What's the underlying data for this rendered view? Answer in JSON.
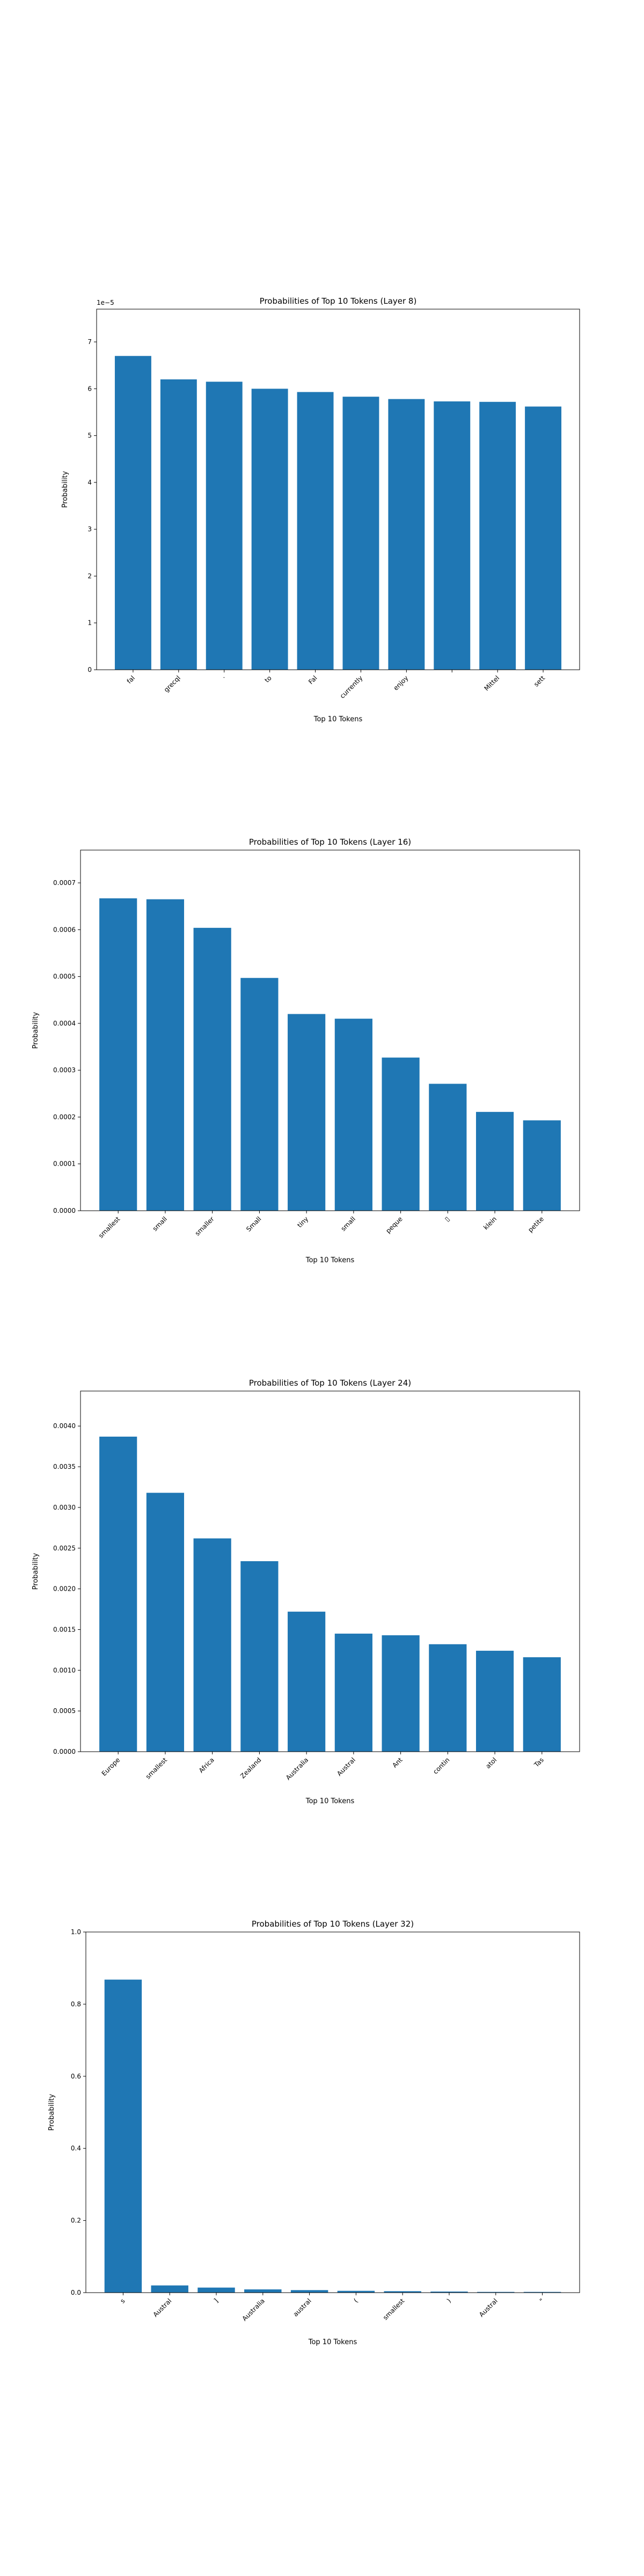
{
  "x_axis_label": "Top 10 Tokens",
  "y_axis_label": "Probability",
  "bar_color": "#1f77b4",
  "chart_data": [
    {
      "type": "bar",
      "title": "Probabilities of Top 10 Tokens (Layer 8)",
      "xlabel": "Top 10 Tokens",
      "ylabel": "Probability",
      "categories": [
        "fal",
        "grecql",
        "·",
        "to",
        "Fal",
        "currently",
        "enjoy",
        "",
        "Mittel",
        "sett"
      ],
      "values": [
        6.7e-05,
        6.2e-05,
        6.15e-05,
        6e-05,
        5.93e-05,
        5.83e-05,
        5.78e-05,
        5.73e-05,
        5.72e-05,
        5.62e-05
      ],
      "ylim": [
        0,
        7.7e-05
      ],
      "yticks": [
        0,
        1e-05,
        2e-05,
        3e-05,
        4e-05,
        5e-05,
        6e-05,
        7e-05
      ],
      "ytick_labels": [
        "0",
        "1",
        "2",
        "3",
        "4",
        "5",
        "6",
        "7"
      ],
      "offset_text": "1e−5",
      "grid": false
    },
    {
      "type": "bar",
      "title": "Probabilities of Top 10 Tokens (Layer 16)",
      "xlabel": "Top 10 Tokens",
      "ylabel": "Probability",
      "categories": [
        "smallest",
        "small",
        "smaller",
        "Small",
        "tiny",
        "small",
        "peque",
        "▯",
        "klein",
        "petite"
      ],
      "values": [
        0.000667,
        0.000665,
        0.000604,
        0.000497,
        0.00042,
        0.00041,
        0.000327,
        0.000271,
        0.000211,
        0.000193
      ],
      "ylim": [
        0,
        0.00077
      ],
      "yticks": [
        0,
        0.0001,
        0.0002,
        0.0003,
        0.0004,
        0.0005,
        0.0006,
        0.0007
      ],
      "ytick_labels": [
        "0.0000",
        "0.0001",
        "0.0002",
        "0.0003",
        "0.0004",
        "0.0005",
        "0.0006",
        "0.0007"
      ],
      "grid": false
    },
    {
      "type": "bar",
      "title": "Probabilities of Top 10 Tokens (Layer 24)",
      "xlabel": "Top 10 Tokens",
      "ylabel": "Probability",
      "categories": [
        "Europe",
        "smallest",
        "Africa",
        "Zealand",
        "Australia",
        "Austral",
        "Ant",
        "contin",
        "atol",
        "Tas"
      ],
      "values": [
        0.00387,
        0.00318,
        0.00262,
        0.00234,
        0.00172,
        0.00145,
        0.00143,
        0.00132,
        0.00124,
        0.00116
      ],
      "ylim": [
        0,
        0.00443
      ],
      "yticks": [
        0,
        0.0005,
        0.001,
        0.0015,
        0.002,
        0.0025,
        0.003,
        0.0035,
        0.004
      ],
      "ytick_labels": [
        "0.0000",
        "0.0005",
        "0.0010",
        "0.0015",
        "0.0020",
        "0.0025",
        "0.0030",
        "0.0035",
        "0.0040"
      ],
      "grid": false
    },
    {
      "type": "bar",
      "title": "Probabilities of Top 10 Tokens (Layer 32)",
      "xlabel": "Top 10 Tokens",
      "ylabel": "Probability",
      "categories": [
        "s",
        "Austral",
        "]",
        "Australia",
        "austral",
        "(",
        "smallest",
        ")",
        "Austral",
        "\""
      ],
      "values": [
        0.868,
        0.02,
        0.014,
        0.009,
        0.007,
        0.005,
        0.004,
        0.003,
        0.002,
        0.002
      ],
      "ylim": [
        0,
        1.0
      ],
      "yticks": [
        0,
        0.2,
        0.4,
        0.6,
        0.8,
        1.0
      ],
      "ytick_labels": [
        "0.0",
        "0.2",
        "0.4",
        "0.6",
        "0.8",
        "1.0"
      ],
      "grid": false
    }
  ]
}
